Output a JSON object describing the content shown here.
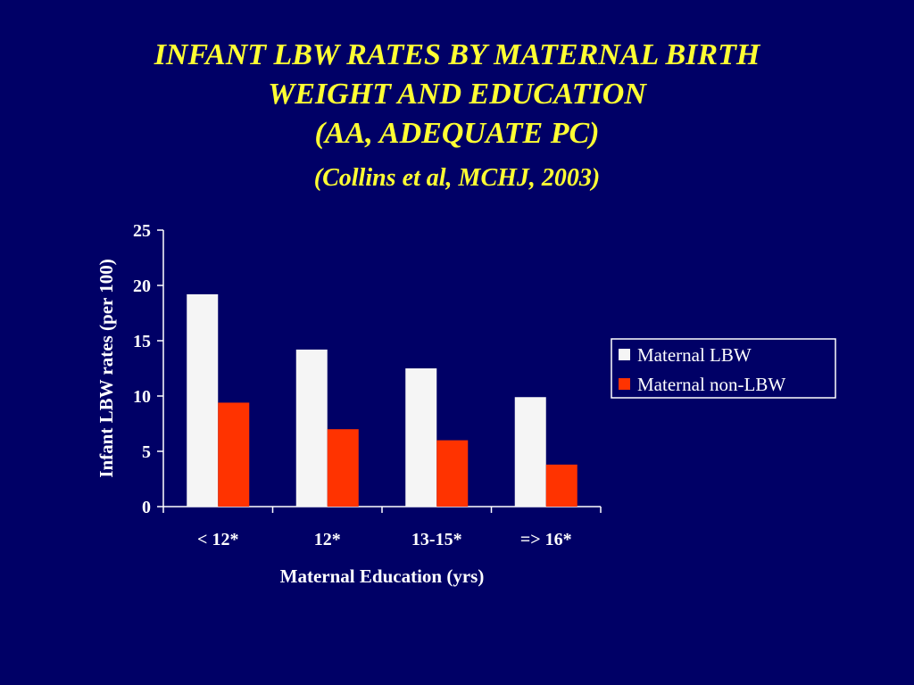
{
  "slide": {
    "title_lines": [
      "INFANT LBW RATES BY MATERNAL BIRTH",
      "WEIGHT AND EDUCATION",
      "(AA, ADEQUATE PC)"
    ],
    "citation": "(Collins et al, MCHJ, 2003)",
    "background_color": "#000066",
    "title_color": "#ffff33"
  },
  "chart_data": {
    "type": "bar",
    "categories": [
      "< 12*",
      "12*",
      "13-15*",
      "=> 16*"
    ],
    "series": [
      {
        "name": "Maternal LBW",
        "values": [
          19.2,
          14.2,
          12.5,
          9.9
        ],
        "color": "#f5f5f5"
      },
      {
        "name": "Maternal non-LBW",
        "values": [
          9.4,
          7.0,
          6.0,
          3.8
        ],
        "color": "#ff3300"
      }
    ],
    "xlabel": "Maternal Education (yrs)",
    "ylabel": "Infant LBW rates (per 100)",
    "ylim": [
      0,
      25
    ],
    "yticks": [
      0,
      5,
      10,
      15,
      20,
      25
    ],
    "grid": false,
    "legend_position": "right"
  }
}
